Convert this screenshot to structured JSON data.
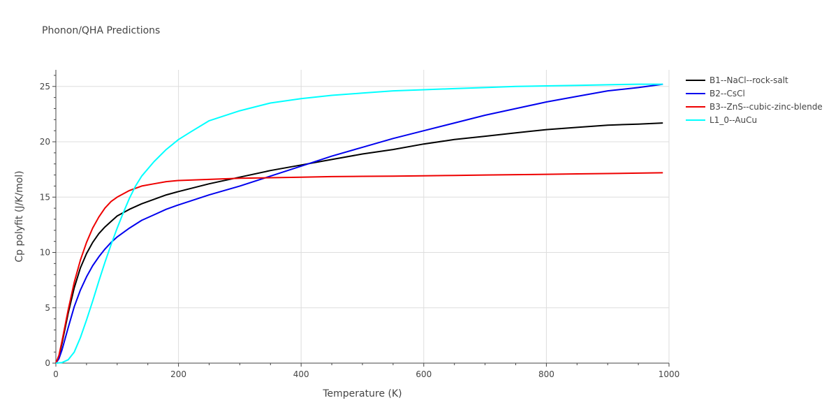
{
  "chart_data": {
    "type": "line",
    "title": "Phonon/QHA Predictions",
    "xlabel": "Temperature (K)",
    "ylabel": "Cp polyfit (J/K/mol)",
    "xlim": [
      0,
      1000
    ],
    "ylim": [
      0,
      26.5
    ],
    "xticks": [
      0,
      200,
      400,
      600,
      800,
      1000
    ],
    "yticks": [
      0,
      5,
      10,
      15,
      20,
      25
    ],
    "grid": true,
    "legend_position": "top-right",
    "series": [
      {
        "name": "B1--NaCl--rock-salt",
        "color": "#000000",
        "x": [
          0,
          5,
          10,
          20,
          30,
          40,
          50,
          60,
          70,
          80,
          90,
          100,
          120,
          140,
          160,
          180,
          200,
          250,
          300,
          350,
          400,
          450,
          500,
          550,
          600,
          650,
          700,
          750,
          800,
          850,
          900,
          950,
          990
        ],
        "y": [
          0,
          0.6,
          1.8,
          4.5,
          6.8,
          8.6,
          9.9,
          10.9,
          11.7,
          12.3,
          12.8,
          13.3,
          13.9,
          14.4,
          14.8,
          15.2,
          15.5,
          16.2,
          16.8,
          17.4,
          17.9,
          18.4,
          18.9,
          19.3,
          19.8,
          20.2,
          20.5,
          20.8,
          21.1,
          21.3,
          21.5,
          21.6,
          21.7
        ]
      },
      {
        "name": "B2--CsCl",
        "color": "#0000ee",
        "x": [
          0,
          5,
          10,
          20,
          30,
          40,
          50,
          60,
          70,
          80,
          90,
          100,
          120,
          140,
          160,
          180,
          200,
          250,
          300,
          350,
          400,
          450,
          500,
          550,
          600,
          650,
          700,
          750,
          800,
          850,
          900,
          950,
          990
        ],
        "y": [
          0,
          0.4,
          1.2,
          3.2,
          5.1,
          6.6,
          7.8,
          8.8,
          9.6,
          10.3,
          10.9,
          11.4,
          12.2,
          12.9,
          13.4,
          13.9,
          14.3,
          15.2,
          16.0,
          16.9,
          17.8,
          18.7,
          19.5,
          20.3,
          21.0,
          21.7,
          22.4,
          23.0,
          23.6,
          24.1,
          24.6,
          24.9,
          25.2
        ]
      },
      {
        "name": "B3--ZnS--cubic-zinc-blende",
        "color": "#ee0000",
        "x": [
          0,
          5,
          10,
          20,
          30,
          40,
          50,
          60,
          70,
          80,
          90,
          100,
          120,
          140,
          160,
          180,
          200,
          250,
          300,
          350,
          400,
          450,
          500,
          550,
          600,
          650,
          700,
          750,
          800,
          850,
          900,
          950,
          990
        ],
        "y": [
          0,
          0.7,
          2.0,
          4.8,
          7.3,
          9.3,
          10.9,
          12.2,
          13.2,
          14.0,
          14.6,
          15.0,
          15.6,
          16.0,
          16.2,
          16.4,
          16.5,
          16.6,
          16.7,
          16.75,
          16.8,
          16.85,
          16.88,
          16.9,
          16.93,
          16.96,
          17.0,
          17.03,
          17.06,
          17.1,
          17.13,
          17.17,
          17.2
        ]
      },
      {
        "name": "L1_0--AuCu",
        "color": "#00ffff",
        "x": [
          0,
          10,
          20,
          30,
          40,
          50,
          60,
          70,
          80,
          90,
          100,
          110,
          120,
          130,
          140,
          160,
          180,
          200,
          220,
          250,
          300,
          350,
          400,
          450,
          500,
          550,
          600,
          650,
          700,
          750,
          800,
          850,
          900,
          950,
          990
        ],
        "y": [
          0,
          0.05,
          0.3,
          1.0,
          2.3,
          3.9,
          5.6,
          7.4,
          9.1,
          10.7,
          12.2,
          13.6,
          14.9,
          16.0,
          16.9,
          18.2,
          19.3,
          20.2,
          20.9,
          21.9,
          22.8,
          23.5,
          23.9,
          24.2,
          24.4,
          24.6,
          24.7,
          24.8,
          24.9,
          25.0,
          25.05,
          25.1,
          25.15,
          25.2,
          25.2
        ]
      }
    ]
  }
}
